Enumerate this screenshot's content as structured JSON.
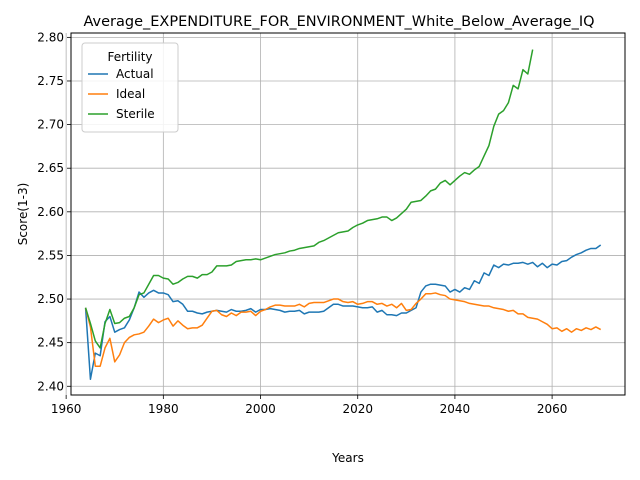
{
  "chart_data": {
    "type": "line",
    "title": "Average_EXPENDITURE_FOR_ENVIRONMENT_White_Below_Average_IQ",
    "xlabel": "Years",
    "ylabel": "Score(1-3)",
    "xlim": [
      1961,
      2075
    ],
    "ylim": [
      2.39,
      2.805
    ],
    "xticks": [
      1960,
      1980,
      2000,
      2020,
      2040,
      2060
    ],
    "yticks": [
      2.4,
      2.45,
      2.5,
      2.55,
      2.6,
      2.65,
      2.7,
      2.75,
      2.8
    ],
    "grid": true,
    "legend": {
      "title": "Fertility",
      "placement": "top-left"
    },
    "series": [
      {
        "name": "Actual",
        "color": "#1f77b4",
        "x": [
          1964,
          1965,
          1966,
          1967,
          1968,
          1969,
          1970,
          1971,
          1972,
          1973,
          1974,
          1975,
          1976,
          1977,
          1978,
          1979,
          1980,
          1981,
          1982,
          1983,
          1984,
          1985,
          1986,
          1987,
          1988,
          1989,
          1990,
          1991,
          1992,
          1993,
          1994,
          1995,
          1996,
          1997,
          1998,
          1999,
          2000,
          2001,
          2002,
          2003,
          2004,
          2005,
          2006,
          2007,
          2008,
          2009,
          2010,
          2011,
          2012,
          2013,
          2014,
          2015,
          2016,
          2017,
          2018,
          2019,
          2020,
          2021,
          2022,
          2023,
          2024,
          2025,
          2026,
          2027,
          2028,
          2029,
          2030,
          2031,
          2032,
          2033,
          2034,
          2035,
          2036,
          2037,
          2038,
          2039,
          2040,
          2041,
          2042,
          2043,
          2044,
          2045,
          2046,
          2047,
          2048,
          2049,
          2050,
          2051,
          2052,
          2053,
          2054,
          2055,
          2056,
          2057,
          2058,
          2059,
          2060,
          2061,
          2062,
          2063,
          2064,
          2065,
          2066,
          2067,
          2068,
          2069,
          2070
        ],
        "values": [
          2.49,
          2.408,
          2.438,
          2.435,
          2.474,
          2.48,
          2.462,
          2.465,
          2.467,
          2.476,
          2.49,
          2.508,
          2.502,
          2.507,
          2.51,
          2.507,
          2.507,
          2.505,
          2.497,
          2.498,
          2.494,
          2.486,
          2.486,
          2.484,
          2.483,
          2.485,
          2.486,
          2.487,
          2.486,
          2.485,
          2.488,
          2.486,
          2.486,
          2.487,
          2.489,
          2.485,
          2.488,
          2.488,
          2.489,
          2.488,
          2.487,
          2.485,
          2.486,
          2.486,
          2.487,
          2.483,
          2.485,
          2.485,
          2.485,
          2.486,
          2.49,
          2.494,
          2.494,
          2.492,
          2.492,
          2.492,
          2.491,
          2.49,
          2.49,
          2.491,
          2.485,
          2.487,
          2.482,
          2.482,
          2.481,
          2.484,
          2.484,
          2.487,
          2.49,
          2.508,
          2.515,
          2.517,
          2.517,
          2.516,
          2.515,
          2.508,
          2.511,
          2.508,
          2.513,
          2.511,
          2.521,
          2.518,
          2.53,
          2.527,
          2.539,
          2.536,
          2.54,
          2.539,
          2.541,
          2.541,
          2.542,
          2.54,
          2.542,
          2.537,
          2.541,
          2.536,
          2.54,
          2.539,
          2.543,
          2.544,
          2.548,
          2.551,
          2.553,
          2.556,
          2.558,
          2.558,
          2.562
        ]
      },
      {
        "name": "Ideal",
        "color": "#ff7f0e",
        "x": [
          1964,
          1965,
          1966,
          1967,
          1968,
          1969,
          1970,
          1971,
          1972,
          1973,
          1974,
          1975,
          1976,
          1977,
          1978,
          1979,
          1980,
          1981,
          1982,
          1983,
          1984,
          1985,
          1986,
          1987,
          1988,
          1989,
          1990,
          1991,
          1992,
          1993,
          1994,
          1995,
          1996,
          1997,
          1998,
          1999,
          2000,
          2001,
          2002,
          2003,
          2004,
          2005,
          2006,
          2007,
          2008,
          2009,
          2010,
          2011,
          2012,
          2013,
          2014,
          2015,
          2016,
          2017,
          2018,
          2019,
          2020,
          2021,
          2022,
          2023,
          2024,
          2025,
          2026,
          2027,
          2028,
          2029,
          2030,
          2031,
          2032,
          2033,
          2034,
          2035,
          2036,
          2037,
          2038,
          2039,
          2040,
          2041,
          2042,
          2043,
          2044,
          2045,
          2046,
          2047,
          2048,
          2049,
          2050,
          2051,
          2052,
          2053,
          2054,
          2055,
          2056,
          2057,
          2058,
          2059,
          2060,
          2061,
          2062,
          2063,
          2064,
          2065,
          2066,
          2067,
          2068,
          2069,
          2070
        ],
        "values": [
          2.49,
          2.468,
          2.423,
          2.423,
          2.444,
          2.455,
          2.428,
          2.436,
          2.45,
          2.456,
          2.459,
          2.46,
          2.462,
          2.469,
          2.477,
          2.473,
          2.476,
          2.478,
          2.469,
          2.475,
          2.47,
          2.466,
          2.467,
          2.467,
          2.47,
          2.478,
          2.486,
          2.487,
          2.482,
          2.48,
          2.484,
          2.481,
          2.485,
          2.485,
          2.486,
          2.481,
          2.486,
          2.488,
          2.491,
          2.493,
          2.493,
          2.492,
          2.492,
          2.492,
          2.494,
          2.491,
          2.495,
          2.496,
          2.496,
          2.496,
          2.498,
          2.5,
          2.5,
          2.497,
          2.496,
          2.497,
          2.494,
          2.495,
          2.497,
          2.497,
          2.494,
          2.495,
          2.492,
          2.494,
          2.49,
          2.495,
          2.487,
          2.488,
          2.495,
          2.5,
          2.506,
          2.506,
          2.507,
          2.505,
          2.504,
          2.5,
          2.499,
          2.498,
          2.497,
          2.495,
          2.494,
          2.493,
          2.492,
          2.492,
          2.49,
          2.489,
          2.488,
          2.486,
          2.487,
          2.483,
          2.483,
          2.479,
          2.478,
          2.477,
          2.474,
          2.471,
          2.466,
          2.467,
          2.463,
          2.466,
          2.462,
          2.466,
          2.464,
          2.467,
          2.465,
          2.468,
          2.465
        ]
      },
      {
        "name": "Sterile",
        "color": "#2ca02c",
        "x": [
          1964,
          1965,
          1966,
          1967,
          1968,
          1969,
          1970,
          1971,
          1972,
          1973,
          1974,
          1975,
          1976,
          1977,
          1978,
          1979,
          1980,
          1981,
          1982,
          1983,
          1984,
          1985,
          1986,
          1987,
          1988,
          1989,
          1990,
          1991,
          1992,
          1993,
          1994,
          1995,
          1996,
          1997,
          1998,
          1999,
          2000,
          2001,
          2002,
          2003,
          2004,
          2005,
          2006,
          2007,
          2008,
          2009,
          2010,
          2011,
          2012,
          2013,
          2014,
          2015,
          2016,
          2017,
          2018,
          2019,
          2020,
          2021,
          2022,
          2023,
          2024,
          2025,
          2026,
          2027,
          2028,
          2029,
          2030,
          2031,
          2032,
          2033,
          2034,
          2035,
          2036,
          2037,
          2038,
          2039,
          2040,
          2041,
          2042,
          2043,
          2044,
          2045,
          2046,
          2047,
          2048,
          2049,
          2050,
          2051,
          2052,
          2053,
          2054,
          2055,
          2056
        ],
        "values": [
          2.49,
          2.472,
          2.452,
          2.444,
          2.472,
          2.488,
          2.472,
          2.473,
          2.478,
          2.48,
          2.49,
          2.505,
          2.507,
          2.517,
          2.527,
          2.527,
          2.524,
          2.523,
          2.517,
          2.519,
          2.523,
          2.526,
          2.526,
          2.524,
          2.528,
          2.528,
          2.531,
          2.538,
          2.538,
          2.538,
          2.539,
          2.543,
          2.544,
          2.545,
          2.545,
          2.546,
          2.545,
          2.547,
          2.549,
          2.551,
          2.552,
          2.553,
          2.555,
          2.556,
          2.558,
          2.559,
          2.56,
          2.561,
          2.565,
          2.567,
          2.57,
          2.573,
          2.576,
          2.577,
          2.578,
          2.582,
          2.585,
          2.587,
          2.59,
          2.591,
          2.592,
          2.594,
          2.594,
          2.59,
          2.593,
          2.598,
          2.603,
          2.611,
          2.612,
          2.613,
          2.618,
          2.624,
          2.626,
          2.633,
          2.636,
          2.631,
          2.636,
          2.641,
          2.645,
          2.643,
          2.648,
          2.652,
          2.664,
          2.676,
          2.698,
          2.712,
          2.716,
          2.725,
          2.745,
          2.741,
          2.763,
          2.758,
          2.786
        ]
      }
    ]
  }
}
